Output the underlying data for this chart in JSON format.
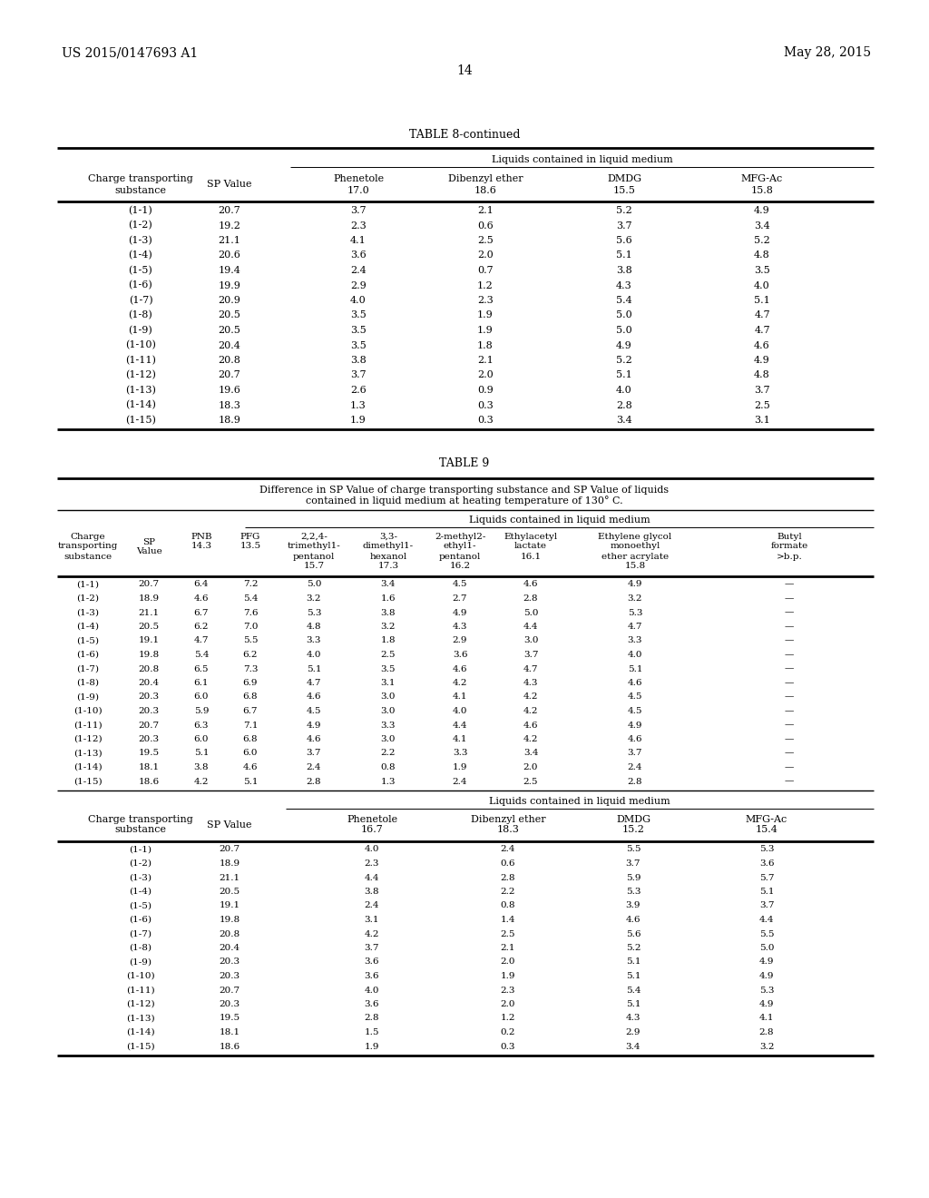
{
  "page_number": "14",
  "patent_left": "US 2015/0147693 A1",
  "patent_right": "May 28, 2015",
  "bg_color": "#ffffff",
  "text_color": "#000000",
  "table8_continued_title": "TABLE 8-continued",
  "table8_subtitle": "Liquids contained in liquid medium",
  "table8_rows": [
    [
      "(1-1)",
      "20.7",
      "3.7",
      "2.1",
      "5.2",
      "4.9"
    ],
    [
      "(1-2)",
      "19.2",
      "2.3",
      "0.6",
      "3.7",
      "3.4"
    ],
    [
      "(1-3)",
      "21.1",
      "4.1",
      "2.5",
      "5.6",
      "5.2"
    ],
    [
      "(1-4)",
      "20.6",
      "3.6",
      "2.0",
      "5.1",
      "4.8"
    ],
    [
      "(1-5)",
      "19.4",
      "2.4",
      "0.7",
      "3.8",
      "3.5"
    ],
    [
      "(1-6)",
      "19.9",
      "2.9",
      "1.2",
      "4.3",
      "4.0"
    ],
    [
      "(1-7)",
      "20.9",
      "4.0",
      "2.3",
      "5.4",
      "5.1"
    ],
    [
      "(1-8)",
      "20.5",
      "3.5",
      "1.9",
      "5.0",
      "4.7"
    ],
    [
      "(1-9)",
      "20.5",
      "3.5",
      "1.9",
      "5.0",
      "4.7"
    ],
    [
      "(1-10)",
      "20.4",
      "3.5",
      "1.8",
      "4.9",
      "4.6"
    ],
    [
      "(1-11)",
      "20.8",
      "3.8",
      "2.1",
      "5.2",
      "4.9"
    ],
    [
      "(1-12)",
      "20.7",
      "3.7",
      "2.0",
      "5.1",
      "4.8"
    ],
    [
      "(1-13)",
      "19.6",
      "2.6",
      "0.9",
      "4.0",
      "3.7"
    ],
    [
      "(1-14)",
      "18.3",
      "1.3",
      "0.3",
      "2.8",
      "2.5"
    ],
    [
      "(1-15)",
      "18.9",
      "1.9",
      "0.3",
      "3.4",
      "3.1"
    ]
  ],
  "table9_title": "TABLE 9",
  "table9_caption_line1": "Difference in SP Value of charge transporting substance and SP Value of liquids",
  "table9_caption_line2": "contained in liquid medium at heating temperature of 130° C.",
  "table9_subtitle": "Liquids contained in liquid medium",
  "table9_rows_top": [
    [
      "(1-1)",
      "20.7",
      "6.4",
      "7.2",
      "5.0",
      "3.4",
      "4.5",
      "4.6",
      "4.9",
      "—"
    ],
    [
      "(1-2)",
      "18.9",
      "4.6",
      "5.4",
      "3.2",
      "1.6",
      "2.7",
      "2.8",
      "3.2",
      "—"
    ],
    [
      "(1-3)",
      "21.1",
      "6.7",
      "7.6",
      "5.3",
      "3.8",
      "4.9",
      "5.0",
      "5.3",
      "—"
    ],
    [
      "(1-4)",
      "20.5",
      "6.2",
      "7.0",
      "4.8",
      "3.2",
      "4.3",
      "4.4",
      "4.7",
      "—"
    ],
    [
      "(1-5)",
      "19.1",
      "4.7",
      "5.5",
      "3.3",
      "1.8",
      "2.9",
      "3.0",
      "3.3",
      "—"
    ],
    [
      "(1-6)",
      "19.8",
      "5.4",
      "6.2",
      "4.0",
      "2.5",
      "3.6",
      "3.7",
      "4.0",
      "—"
    ],
    [
      "(1-7)",
      "20.8",
      "6.5",
      "7.3",
      "5.1",
      "3.5",
      "4.6",
      "4.7",
      "5.1",
      "—"
    ],
    [
      "(1-8)",
      "20.4",
      "6.1",
      "6.9",
      "4.7",
      "3.1",
      "4.2",
      "4.3",
      "4.6",
      "—"
    ],
    [
      "(1-9)",
      "20.3",
      "6.0",
      "6.8",
      "4.6",
      "3.0",
      "4.1",
      "4.2",
      "4.5",
      "—"
    ],
    [
      "(1-10)",
      "20.3",
      "5.9",
      "6.7",
      "4.5",
      "3.0",
      "4.0",
      "4.2",
      "4.5",
      "—"
    ],
    [
      "(1-11)",
      "20.7",
      "6.3",
      "7.1",
      "4.9",
      "3.3",
      "4.4",
      "4.6",
      "4.9",
      "—"
    ],
    [
      "(1-12)",
      "20.3",
      "6.0",
      "6.8",
      "4.6",
      "3.0",
      "4.1",
      "4.2",
      "4.6",
      "—"
    ],
    [
      "(1-13)",
      "19.5",
      "5.1",
      "6.0",
      "3.7",
      "2.2",
      "3.3",
      "3.4",
      "3.7",
      "—"
    ],
    [
      "(1-14)",
      "18.1",
      "3.8",
      "4.6",
      "2.4",
      "0.8",
      "1.9",
      "2.0",
      "2.4",
      "—"
    ],
    [
      "(1-15)",
      "18.6",
      "4.2",
      "5.1",
      "2.8",
      "1.3",
      "2.4",
      "2.5",
      "2.8",
      "—"
    ]
  ],
  "table9_subtitle2": "Liquids contained in liquid medium",
  "table9_rows_bottom": [
    [
      "(1-1)",
      "20.7",
      "4.0",
      "2.4",
      "5.5",
      "5.3"
    ],
    [
      "(1-2)",
      "18.9",
      "2.3",
      "0.6",
      "3.7",
      "3.6"
    ],
    [
      "(1-3)",
      "21.1",
      "4.4",
      "2.8",
      "5.9",
      "5.7"
    ],
    [
      "(1-4)",
      "20.5",
      "3.8",
      "2.2",
      "5.3",
      "5.1"
    ],
    [
      "(1-5)",
      "19.1",
      "2.4",
      "0.8",
      "3.9",
      "3.7"
    ],
    [
      "(1-6)",
      "19.8",
      "3.1",
      "1.4",
      "4.6",
      "4.4"
    ],
    [
      "(1-7)",
      "20.8",
      "4.2",
      "2.5",
      "5.6",
      "5.5"
    ],
    [
      "(1-8)",
      "20.4",
      "3.7",
      "2.1",
      "5.2",
      "5.0"
    ],
    [
      "(1-9)",
      "20.3",
      "3.6",
      "2.0",
      "5.1",
      "4.9"
    ],
    [
      "(1-10)",
      "20.3",
      "3.6",
      "1.9",
      "5.1",
      "4.9"
    ],
    [
      "(1-11)",
      "20.7",
      "4.0",
      "2.3",
      "5.4",
      "5.3"
    ],
    [
      "(1-12)",
      "20.3",
      "3.6",
      "2.0",
      "5.1",
      "4.9"
    ],
    [
      "(1-13)",
      "19.5",
      "2.8",
      "1.2",
      "4.3",
      "4.1"
    ],
    [
      "(1-14)",
      "18.1",
      "1.5",
      "0.2",
      "2.9",
      "2.8"
    ],
    [
      "(1-15)",
      "18.6",
      "1.9",
      "0.3",
      "3.4",
      "3.2"
    ]
  ]
}
